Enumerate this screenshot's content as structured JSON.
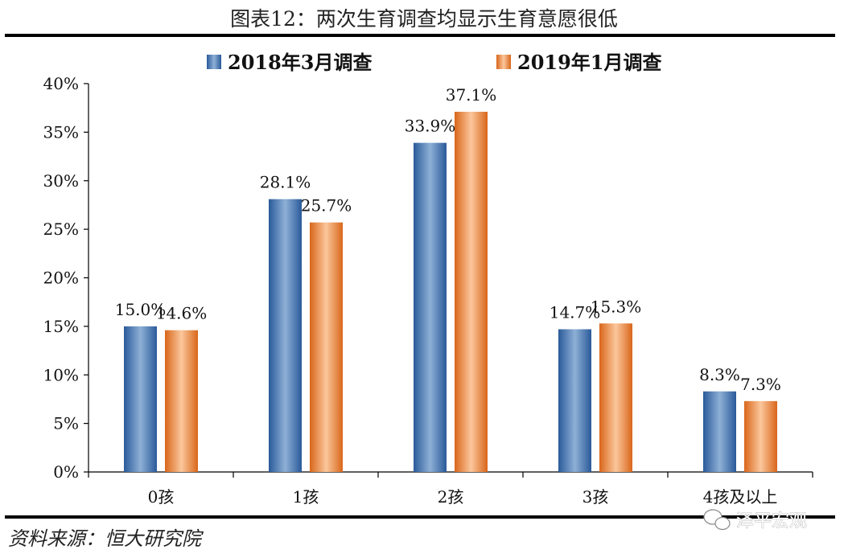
{
  "title": "图表12：两次生育调查均显示生育意愿很低",
  "source": "资料来源：恒大研究院",
  "watermark": "泽平宏观",
  "chart_data": {
    "type": "bar",
    "categories": [
      "0孩",
      "1孩",
      "2孩",
      "3孩",
      "4孩及以上"
    ],
    "series": [
      {
        "name": "2018年3月调查",
        "values": [
          15.0,
          28.1,
          33.9,
          14.7,
          8.3
        ],
        "labels": [
          "15.0%",
          "28.1%",
          "33.9%",
          "14.7%",
          "8.3%"
        ],
        "color": "#4f81bd"
      },
      {
        "name": "2019年1月调查",
        "values": [
          14.6,
          25.7,
          37.1,
          15.3,
          7.3
        ],
        "labels": [
          "14.6%",
          "25.7%",
          "37.1%",
          "15.3%",
          "7.3%"
        ],
        "color": "#f79646"
      }
    ],
    "ylim": [
      0,
      40
    ],
    "yticks": [
      0,
      5,
      10,
      15,
      20,
      25,
      30,
      35,
      40
    ],
    "ytick_labels": [
      "0%",
      "5%",
      "10%",
      "15%",
      "20%",
      "25%",
      "30%",
      "35%",
      "40%"
    ],
    "xlabel": "",
    "ylabel": "",
    "legend_position": "top"
  }
}
